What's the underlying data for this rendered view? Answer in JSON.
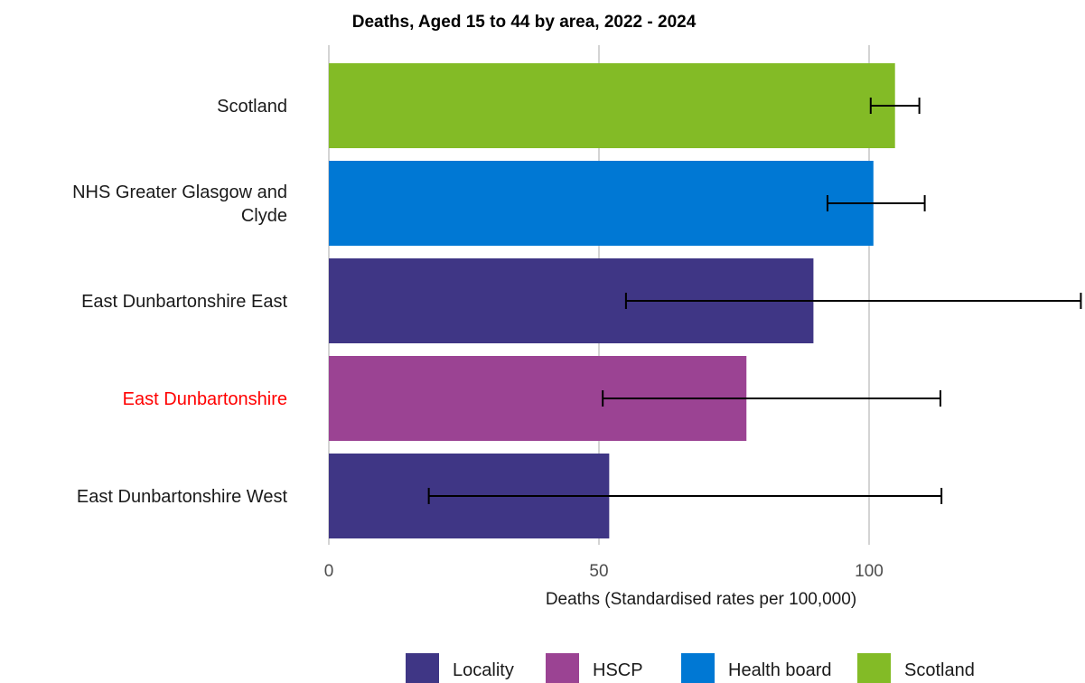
{
  "chart_data": {
    "type": "bar",
    "orientation": "horizontal",
    "title": "Deaths, Aged 15 to 44 by area, 2022 - 2024",
    "xlabel": "Deaths (Standardised rates per 100,000)",
    "ylabel": "",
    "xlim": [
      0,
      140
    ],
    "xticks": [
      0,
      50,
      100
    ],
    "grid": true,
    "legend_position": "bottom",
    "categories": [
      "Scotland",
      "NHS Greater Glasgow and Clyde",
      "East Dunbartonshire East",
      "East Dunbartonshire",
      "East Dunbartonshire West"
    ],
    "category_label_lines": [
      [
        "Scotland"
      ],
      [
        "NHS Greater Glasgow and",
        "Clyde"
      ],
      [
        "East Dunbartonshire East"
      ],
      [
        "East Dunbartonshire"
      ],
      [
        "East Dunbartonshire West"
      ]
    ],
    "highlighted_category": "East Dunbartonshire",
    "highlight_color": "#ff0000",
    "values": [
      104.8,
      100.8,
      89.7,
      77.3,
      51.9
    ],
    "ci_lower": [
      100.3,
      92.3,
      55.0,
      50.7,
      18.5
    ],
    "ci_upper": [
      109.3,
      110.3,
      139.2,
      113.2,
      113.4
    ],
    "groups": [
      "Scotland",
      "Health board",
      "Locality",
      "HSCP",
      "Locality"
    ],
    "legend": [
      {
        "name": "Locality",
        "color": "#3f3685"
      },
      {
        "name": "HSCP",
        "color": "#9b4393"
      },
      {
        "name": "Health board",
        "color": "#0078d4"
      },
      {
        "name": "Scotland",
        "color": "#83bb26"
      }
    ]
  }
}
